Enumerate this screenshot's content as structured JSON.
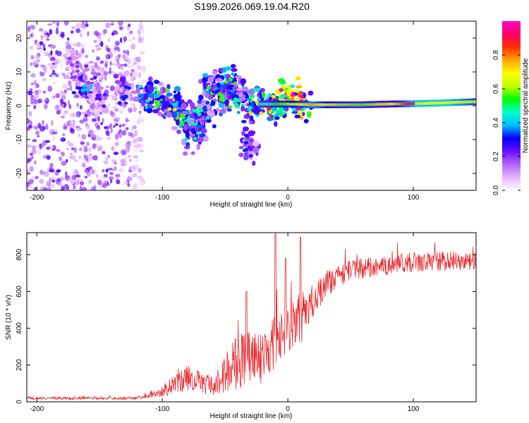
{
  "figure": {
    "title": "S199.2026.069.19.04.R20"
  },
  "chart_data": [
    {
      "type": "heatmap",
      "name": "spectrogram",
      "xlabel": "Height of straight line (km)",
      "ylabel": "Frequency (Hz)",
      "xlim": [
        -208,
        150
      ],
      "ylim": [
        -25,
        25
      ],
      "xticks": [
        -200,
        -100,
        0,
        100
      ],
      "yticks": [
        20,
        10,
        0,
        -10,
        -20
      ],
      "colorbar": {
        "label": "Normalized spectral amplitude",
        "range": [
          0,
          1
        ],
        "ticks": [
          0.0,
          0.2,
          0.4,
          0.6,
          0.8
        ],
        "colors": [
          "#ffffff",
          "#e6b3ff",
          "#b266ff",
          "#6a0dff",
          "#0000ff",
          "#00bfff",
          "#00ffcc",
          "#00ff00",
          "#bfff00",
          "#ffff00",
          "#ffa500",
          "#ff3000",
          "#ff0066",
          "#ff00cc"
        ]
      },
      "clusters": [
        {
          "x": -170,
          "y": 12,
          "amp": 0.12
        },
        {
          "x": -160,
          "y": 7,
          "amp": 0.25
        },
        {
          "x": -150,
          "y": 2,
          "amp": 0.15
        },
        {
          "x": -130,
          "y": 3,
          "amp": 0.2
        },
        {
          "x": -110,
          "y": 3,
          "amp": 0.3
        },
        {
          "x": -100,
          "y": 2,
          "amp": 0.35
        },
        {
          "x": -90,
          "y": 0,
          "amp": 0.4
        },
        {
          "x": -82,
          "y": -4,
          "amp": 0.35
        },
        {
          "x": -75,
          "y": -8,
          "amp": 0.3
        },
        {
          "x": -68,
          "y": -2,
          "amp": 0.3
        },
        {
          "x": -60,
          "y": 5,
          "amp": 0.35
        },
        {
          "x": -52,
          "y": 3,
          "amp": 0.35
        },
        {
          "x": -45,
          "y": 7,
          "amp": 0.35
        },
        {
          "x": -38,
          "y": 2,
          "amp": 0.3
        },
        {
          "x": -32,
          "y": -12,
          "amp": 0.2
        },
        {
          "x": -25,
          "y": 1,
          "amp": 0.45
        },
        {
          "x": -10,
          "y": 0,
          "amp": 0.55
        },
        {
          "x": 0,
          "y": 3,
          "amp": 0.6
        },
        {
          "x": 10,
          "y": 1,
          "amp": 0.7
        }
      ],
      "ridge": [
        {
          "x": -20,
          "y": 0.5,
          "amp": 0.5
        },
        {
          "x": 0,
          "y": 0.5,
          "amp": 0.65
        },
        {
          "x": 20,
          "y": 0.3,
          "amp": 0.8
        },
        {
          "x": 40,
          "y": 0.3,
          "amp": 0.6
        },
        {
          "x": 60,
          "y": 0.3,
          "amp": 0.55
        },
        {
          "x": 80,
          "y": 0.5,
          "amp": 0.6
        },
        {
          "x": 100,
          "y": 0.6,
          "amp": 0.85
        },
        {
          "x": 120,
          "y": 0.8,
          "amp": 0.9
        },
        {
          "x": 150,
          "y": 1.2,
          "amp": 0.75
        }
      ]
    },
    {
      "type": "line",
      "name": "snr",
      "xlabel": "Height of straight line (km)",
      "ylabel": "SNR (10 * v/v)",
      "xlim": [
        -208,
        150
      ],
      "ylim": [
        0,
        920
      ],
      "xticks": [
        -200,
        -100,
        0,
        100
      ],
      "yticks": [
        0,
        200,
        400,
        600,
        800
      ],
      "color": "#e8262a",
      "envelope": [
        {
          "x": -208,
          "mean": 20,
          "spread": 15
        },
        {
          "x": -120,
          "mean": 20,
          "spread": 15
        },
        {
          "x": -100,
          "mean": 60,
          "spread": 60
        },
        {
          "x": -80,
          "mean": 130,
          "spread": 140
        },
        {
          "x": -60,
          "mean": 90,
          "spread": 100
        },
        {
          "x": -40,
          "mean": 220,
          "spread": 300
        },
        {
          "x": -20,
          "mean": 230,
          "spread": 260
        },
        {
          "x": -5,
          "mean": 380,
          "spread": 250
        },
        {
          "x": 10,
          "mean": 450,
          "spread": 260
        },
        {
          "x": 30,
          "mean": 640,
          "spread": 130
        },
        {
          "x": 50,
          "mean": 720,
          "spread": 100
        },
        {
          "x": 100,
          "mean": 760,
          "spread": 100
        },
        {
          "x": 150,
          "mean": 770,
          "spread": 90
        }
      ],
      "peaks": [
        {
          "x": -10,
          "y": 915
        },
        {
          "x": -2,
          "y": 780
        },
        {
          "x": 10,
          "y": 895
        },
        {
          "x": -33,
          "y": 600
        }
      ]
    }
  ]
}
